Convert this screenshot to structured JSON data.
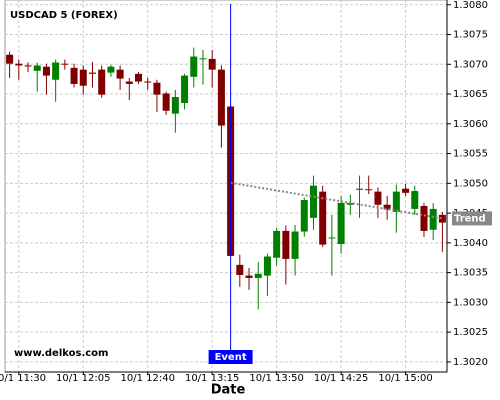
{
  "chart_data": {
    "type": "candlestick",
    "title": "USDCAD 5 (FOREX)",
    "xlabel": "Date",
    "watermark": "www.delkos.com",
    "categories": [
      null,
      "10/1 11:30",
      null,
      null,
      null,
      null,
      null,
      null,
      "10/1 12:05",
      null,
      null,
      null,
      null,
      null,
      null,
      "10/1 12:40",
      null,
      null,
      null,
      null,
      null,
      null,
      "10/1 13:15",
      null,
      null,
      null,
      null,
      null,
      null,
      "10/1 13:50",
      null,
      null,
      null,
      null,
      null,
      null,
      "10/1 14:25",
      null,
      null,
      null,
      null,
      null,
      null,
      "10/1 15:00",
      null,
      null,
      null,
      null
    ],
    "open": [
      1.30716,
      1.30701,
      1.30698,
      1.30689,
      1.30696,
      1.30674,
      1.30701,
      1.30694,
      1.30691,
      1.30686,
      1.30691,
      1.30686,
      1.30691,
      1.30671,
      1.30684,
      1.30671,
      1.30669,
      1.30651,
      1.30617,
      1.30635,
      1.30679,
      1.30709,
      1.30709,
      1.30691,
      1.30629,
      1.30363,
      1.30345,
      1.30341,
      1.30345,
      1.30375,
      1.3042,
      1.30373,
      1.30419,
      1.30442,
      1.30486,
      1.30408,
      1.30398,
      1.30464,
      1.30489,
      1.3049,
      1.30486,
      1.30464,
      1.30452,
      1.30491,
      1.30457,
      1.30462,
      1.30422,
      1.30447
    ],
    "high": [
      1.30721,
      1.30708,
      1.30703,
      1.30703,
      1.30701,
      1.30708,
      1.30708,
      1.30701,
      1.30698,
      1.30704,
      1.30698,
      1.30699,
      1.30698,
      1.30677,
      1.30687,
      1.30677,
      1.30674,
      1.30654,
      1.30657,
      1.30684,
      1.30728,
      1.30724,
      1.30724,
      1.30698,
      1.30632,
      1.3038,
      1.30358,
      1.30368,
      1.30382,
      1.30425,
      1.30429,
      1.3043,
      1.30476,
      1.30513,
      1.30496,
      1.30447,
      1.30479,
      1.30481,
      1.30513,
      1.30513,
      1.30493,
      1.30479,
      1.30498,
      1.30499,
      1.30496,
      1.30467,
      1.30467,
      1.30452
    ],
    "low": [
      1.30677,
      1.30674,
      1.30687,
      1.30654,
      1.30649,
      1.30637,
      1.30691,
      1.30661,
      1.30649,
      1.30661,
      1.30644,
      1.30679,
      1.30657,
      1.3064,
      1.30667,
      1.30657,
      1.3062,
      1.30615,
      1.30585,
      1.30624,
      1.30661,
      1.30666,
      1.30661,
      1.3056,
      1.30378,
      1.30326,
      1.30321,
      1.30288,
      1.30311,
      1.30362,
      1.3033,
      1.30345,
      1.3041,
      1.30422,
      1.30393,
      1.30345,
      1.30382,
      1.30447,
      1.30442,
      1.30482,
      1.30442,
      1.30439,
      1.30417,
      1.30479,
      1.30447,
      1.3041,
      1.30405,
      1.30385
    ],
    "close": [
      1.30701,
      1.30698,
      1.30697,
      1.30698,
      1.30681,
      1.30703,
      1.307,
      1.30667,
      1.30664,
      1.30684,
      1.30649,
      1.30696,
      1.30676,
      1.30667,
      1.30671,
      1.3067,
      1.30649,
      1.30622,
      1.30645,
      1.30681,
      1.30713,
      1.3071,
      1.30691,
      1.30597,
      1.30378,
      1.30346,
      1.30341,
      1.30348,
      1.30377,
      1.3042,
      1.30373,
      1.30419,
      1.30472,
      1.30496,
      1.30397,
      1.30409,
      1.30467,
      1.30467,
      1.30491,
      1.30489,
      1.30464,
      1.30456,
      1.30486,
      1.30484,
      1.30487,
      1.3042,
      1.30457,
      1.30434
    ],
    "up_color": "#008000",
    "down_color": "#800000",
    "ylim": [
      1.30183,
      1.30808
    ],
    "yticks": [
      {
        "value": 1.302,
        "label": "1.3020"
      },
      {
        "value": 1.3025,
        "label": "1.3025"
      },
      {
        "value": 1.303,
        "label": "1.3030"
      },
      {
        "value": 1.3035,
        "label": "1.3035"
      },
      {
        "value": 1.304,
        "label": "1.3040"
      },
      {
        "value": 1.3045,
        "label": "1.3045"
      },
      {
        "value": 1.305,
        "label": "1.3050"
      },
      {
        "value": 1.3055,
        "label": "1.3055"
      },
      {
        "value": 1.306,
        "label": "1.3060"
      },
      {
        "value": 1.3065,
        "label": "1.3065"
      },
      {
        "value": 1.307,
        "label": "1.3070"
      },
      {
        "value": 1.3075,
        "label": "1.3075"
      },
      {
        "value": 1.308,
        "label": "1.3080"
      }
    ],
    "grid": true,
    "event": {
      "label": "Event",
      "index": 24,
      "color": "#0000ff"
    },
    "trend": {
      "label": "Trend",
      "start": {
        "index": 24,
        "value": 1.30501
      },
      "end": {
        "index": 47.5,
        "value": 1.30441
      },
      "color": "#888888"
    }
  }
}
